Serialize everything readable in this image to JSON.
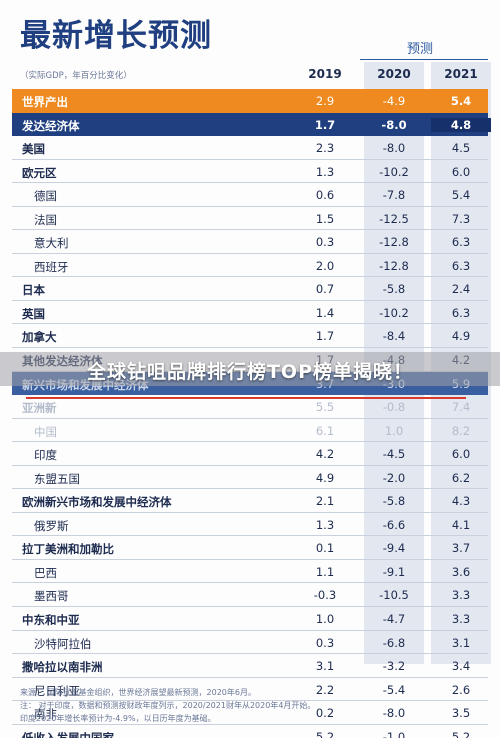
{
  "title": "最新增长预测",
  "forecast_label": "预测",
  "subtitle": "（实际GDP，年百分比变化）",
  "years": [
    "2019",
    "2020",
    "2021"
  ],
  "rows": [
    {
      "name": "世界产出",
      "v": [
        "2.9",
        "-4.9",
        "5.4"
      ],
      "style": "orange bold"
    },
    {
      "name": "发达经济体",
      "v": [
        "1.7",
        "-8.0",
        "4.8"
      ],
      "style": "navy bold"
    },
    {
      "name": "美国",
      "v": [
        "2.3",
        "-8.0",
        "4.5"
      ],
      "style": "bold"
    },
    {
      "name": "欧元区",
      "v": [
        "1.3",
        "-10.2",
        "6.0"
      ],
      "style": "bold"
    },
    {
      "name": "德国",
      "v": [
        "0.6",
        "-7.8",
        "5.4"
      ],
      "style": "sub"
    },
    {
      "name": "法国",
      "v": [
        "1.5",
        "-12.5",
        "7.3"
      ],
      "style": "sub"
    },
    {
      "name": "意大利",
      "v": [
        "0.3",
        "-12.8",
        "6.3"
      ],
      "style": "sub"
    },
    {
      "name": "西班牙",
      "v": [
        "2.0",
        "-12.8",
        "6.3"
      ],
      "style": "sub"
    },
    {
      "name": "日本",
      "v": [
        "0.7",
        "-5.8",
        "2.4"
      ],
      "style": "bold"
    },
    {
      "name": "英国",
      "v": [
        "1.4",
        "-10.2",
        "6.3"
      ],
      "style": "bold"
    },
    {
      "name": "加拿大",
      "v": [
        "1.7",
        "-8.4",
        "4.9"
      ],
      "style": "bold"
    },
    {
      "name": "其他发达经济体",
      "v": [
        "1.7",
        "-4.8",
        "4.2"
      ],
      "style": "bold"
    },
    {
      "name": "新兴市场和发展中经济体",
      "v": [
        "3.7",
        "-3.0",
        "5.9"
      ],
      "style": "bluehead bold"
    },
    {
      "name": "亚洲新",
      "v": [
        "5.5",
        "-0.8",
        "7.4"
      ],
      "style": "faded bold"
    },
    {
      "name": "中国",
      "v": [
        "6.1",
        "1.0",
        "8.2"
      ],
      "style": "sub faded"
    },
    {
      "name": "印度",
      "v": [
        "4.2",
        "-4.5",
        "6.0"
      ],
      "style": "sub"
    },
    {
      "name": "东盟五国",
      "v": [
        "4.9",
        "-2.0",
        "6.2"
      ],
      "style": "sub"
    },
    {
      "name": "欧洲新兴市场和发展中经济体",
      "v": [
        "2.1",
        "-5.8",
        "4.3"
      ],
      "style": "bold"
    },
    {
      "name": "俄罗斯",
      "v": [
        "1.3",
        "-6.6",
        "4.1"
      ],
      "style": "sub"
    },
    {
      "name": "拉丁美洲和加勒比",
      "v": [
        "0.1",
        "-9.4",
        "3.7"
      ],
      "style": "bold"
    },
    {
      "name": "巴西",
      "v": [
        "1.1",
        "-9.1",
        "3.6"
      ],
      "style": "sub"
    },
    {
      "name": "墨西哥",
      "v": [
        "-0.3",
        "-10.5",
        "3.3"
      ],
      "style": "sub"
    },
    {
      "name": "中东和中亚",
      "v": [
        "1.0",
        "-4.7",
        "3.3"
      ],
      "style": "bold"
    },
    {
      "name": "沙特阿拉伯",
      "v": [
        "0.3",
        "-6.8",
        "3.1"
      ],
      "style": "sub"
    },
    {
      "name": "撒哈拉以南非洲",
      "v": [
        "3.1",
        "-3.2",
        "3.4"
      ],
      "style": "bold"
    },
    {
      "name": "尼日利亚",
      "v": [
        "2.2",
        "-5.4",
        "2.6"
      ],
      "style": "sub"
    },
    {
      "name": "南非",
      "v": [
        "0.2",
        "-8.0",
        "3.5"
      ],
      "style": "sub"
    },
    {
      "name": "低收入发展中国家",
      "v": [
        "5.2",
        "-1.0",
        "5.2"
      ],
      "style": "bold"
    }
  ],
  "overlay_text": "全球钻咀品牌排行榜TOP榜单揭晓！",
  "notes": [
    "来源：   国际货币基金组织，世界经济展望最新预测，2020年6月。",
    "注：  对于印度，数据和预测按财政年度列示，2020/2021财年从2020年4月开始。",
    "印度2020年增长率预计为-4.9%，以日历年度为基础。"
  ]
}
